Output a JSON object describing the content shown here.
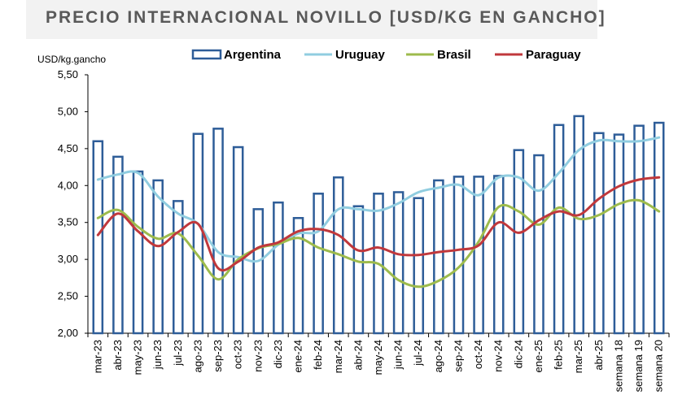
{
  "colors": {
    "argentina": "#2e5d98",
    "uruguay": "#90cde0",
    "brasil": "#9dbb4c",
    "paraguay": "#c0383c"
  },
  "chart_data": {
    "type": "bar",
    "title": "PRECIO INTERNACIONAL NOVILLO [USD/KG EN GANCHO]",
    "ylabel": "USD/kg.gancho",
    "xlabel": "",
    "ylim": [
      2.0,
      5.5
    ],
    "yticks": [
      "2,00",
      "2,50",
      "3,00",
      "3,50",
      "4,00",
      "4,50",
      "5,00",
      "5,50"
    ],
    "legend_position": "top",
    "grid": false,
    "categories": [
      "mar-23",
      "abr-23",
      "may-23",
      "jun-23",
      "jul-23",
      "ago-23",
      "sep-23",
      "oct-23",
      "nov-23",
      "dic-23",
      "ene-24",
      "feb-24",
      "mar-24",
      "abr-24",
      "may-24",
      "jun-24",
      "jul-24",
      "ago-24",
      "sep-24",
      "oct-24",
      "nov-24",
      "dic-24",
      "ene-25",
      "feb-25",
      "mar-25",
      "abr-25",
      "semana 18",
      "semana 19",
      "semana 20"
    ],
    "series": [
      {
        "name": "Argentina",
        "type": "bar",
        "values": [
          4.6,
          4.39,
          4.19,
          4.07,
          3.79,
          4.7,
          4.77,
          4.52,
          3.68,
          3.77,
          3.56,
          3.89,
          4.11,
          3.72,
          3.89,
          3.91,
          3.83,
          4.07,
          4.12,
          4.12,
          4.13,
          4.48,
          4.41,
          4.82,
          4.94,
          4.71,
          4.69,
          4.81,
          4.85
        ]
      },
      {
        "name": "Uruguay",
        "type": "line",
        "values": [
          4.08,
          4.15,
          4.17,
          3.85,
          3.62,
          3.48,
          3.1,
          3.03,
          2.98,
          3.2,
          3.35,
          3.38,
          3.68,
          3.68,
          3.66,
          3.76,
          3.91,
          3.97,
          4.01,
          3.87,
          4.11,
          4.11,
          3.93,
          4.17,
          4.48,
          4.61,
          4.6,
          4.6,
          4.65
        ]
      },
      {
        "name": "Brasil",
        "type": "line",
        "values": [
          3.56,
          3.67,
          3.44,
          3.28,
          3.35,
          3.05,
          2.73,
          3.0,
          3.15,
          3.21,
          3.29,
          3.16,
          3.07,
          2.97,
          2.94,
          2.72,
          2.63,
          2.71,
          2.89,
          3.24,
          3.71,
          3.65,
          3.47,
          3.7,
          3.55,
          3.6,
          3.75,
          3.8,
          3.65
        ]
      },
      {
        "name": "Paraguay",
        "type": "line",
        "values": [
          3.33,
          3.62,
          3.38,
          3.18,
          3.37,
          3.48,
          2.88,
          2.97,
          3.16,
          3.23,
          3.38,
          3.41,
          3.33,
          3.12,
          3.16,
          3.07,
          3.06,
          3.1,
          3.13,
          3.19,
          3.5,
          3.36,
          3.53,
          3.65,
          3.6,
          3.82,
          3.99,
          4.08,
          4.11
        ]
      }
    ]
  }
}
